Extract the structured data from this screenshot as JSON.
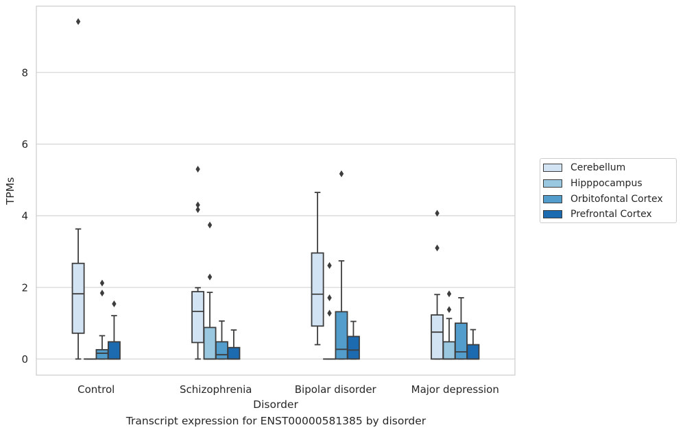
{
  "chart_data": {
    "type": "boxplot",
    "xlabel": "Disorder",
    "ylabel": "TPMs",
    "caption": "Transcript expression for ENST00000581385 by disorder",
    "ylim": [
      -0.45,
      9.85
    ],
    "yticks": [
      0,
      2,
      4,
      6,
      8
    ],
    "grid": "horizontal",
    "legend_position": "right",
    "categories": [
      "Control",
      "Schizophrenia",
      "Bipolar disorder",
      "Major depression"
    ],
    "series": [
      {
        "name": "Cerebellum",
        "color": "#d2e3f3",
        "boxes": [
          {
            "whislo": 0.0,
            "q1": 0.72,
            "med": 1.82,
            "q3": 2.67,
            "whishi": 3.63,
            "fliers": [
              9.42
            ]
          },
          {
            "whislo": 0.0,
            "q1": 0.46,
            "med": 1.33,
            "q3": 1.88,
            "whishi": 1.99,
            "fliers": [
              5.3,
              4.3,
              4.17
            ]
          },
          {
            "whislo": 0.4,
            "q1": 0.92,
            "med": 1.81,
            "q3": 2.96,
            "whishi": 4.65,
            "fliers": []
          },
          {
            "whislo": 0.0,
            "q1": 0.0,
            "med": 0.75,
            "q3": 1.23,
            "whishi": 1.8,
            "fliers": [
              4.07,
              3.1
            ]
          }
        ]
      },
      {
        "name": "Hipppocampus",
        "color": "#9ac8e0",
        "boxes": [
          {
            "whislo": 0.0,
            "q1": 0.0,
            "med": 0.0,
            "q3": 0.0,
            "whishi": 0.0,
            "fliers": []
          },
          {
            "whislo": 0.0,
            "q1": 0.0,
            "med": 0.0,
            "q3": 0.88,
            "whishi": 1.86,
            "fliers": [
              3.74,
              2.29
            ]
          },
          {
            "whislo": 0.0,
            "q1": 0.0,
            "med": 0.0,
            "q3": 0.0,
            "whishi": 0.0,
            "fliers": [
              2.61,
              1.71,
              1.28
            ]
          },
          {
            "whislo": 0.0,
            "q1": 0.0,
            "med": 0.0,
            "q3": 0.48,
            "whishi": 1.13,
            "fliers": [
              1.82,
              1.38
            ]
          }
        ]
      },
      {
        "name": "Orbitofontal Cortex",
        "color": "#529dcc",
        "boxes": [
          {
            "whislo": 0.0,
            "q1": 0.0,
            "med": 0.16,
            "q3": 0.26,
            "whishi": 0.65,
            "fliers": [
              2.12,
              1.84
            ]
          },
          {
            "whislo": 0.0,
            "q1": 0.0,
            "med": 0.12,
            "q3": 0.48,
            "whishi": 1.06,
            "fliers": []
          },
          {
            "whislo": 0.0,
            "q1": 0.0,
            "med": 0.27,
            "q3": 1.32,
            "whishi": 2.74,
            "fliers": [
              5.17
            ]
          },
          {
            "whislo": 0.0,
            "q1": 0.0,
            "med": 0.2,
            "q3": 1.0,
            "whishi": 1.71,
            "fliers": []
          }
        ]
      },
      {
        "name": "Prefrontal Cortex",
        "color": "#1c6aaf",
        "boxes": [
          {
            "whislo": 0.0,
            "q1": 0.0,
            "med": 0.0,
            "q3": 0.48,
            "whishi": 1.21,
            "fliers": [
              1.54
            ]
          },
          {
            "whislo": 0.0,
            "q1": 0.0,
            "med": 0.0,
            "q3": 0.32,
            "whishi": 0.81,
            "fliers": []
          },
          {
            "whislo": 0.0,
            "q1": 0.0,
            "med": 0.25,
            "q3": 0.63,
            "whishi": 1.05,
            "fliers": []
          },
          {
            "whislo": 0.0,
            "q1": 0.0,
            "med": 0.0,
            "q3": 0.4,
            "whishi": 0.82,
            "fliers": []
          }
        ]
      }
    ]
  }
}
